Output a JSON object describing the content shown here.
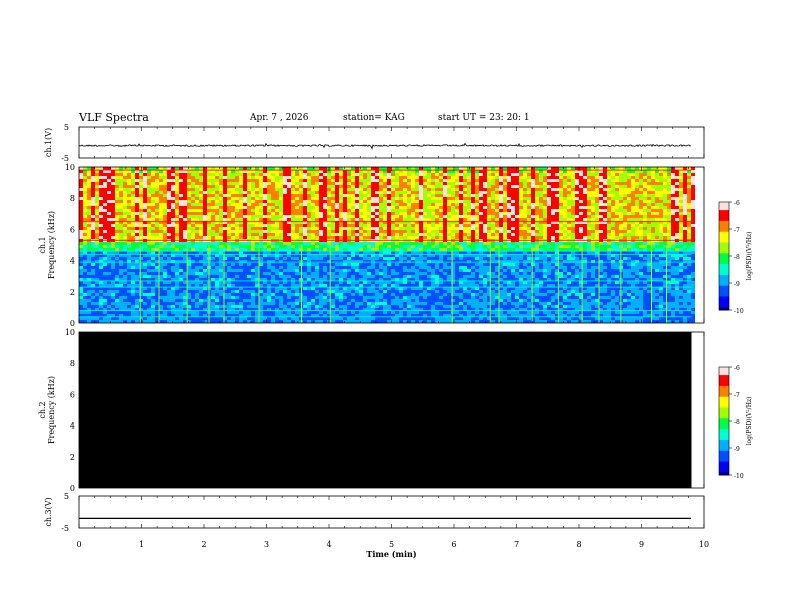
{
  "header": {
    "title": "VLF Spectra",
    "date": "Apr. 7 , 2026",
    "station": "station= KAG",
    "start": "start UT = 23: 20: 1"
  },
  "colors": {
    "spectrogram": [
      "#000080",
      "#0000ff",
      "#0050ff",
      "#00b0ff",
      "#00ffd0",
      "#00ff40",
      "#a0ff00",
      "#ffff00",
      "#ff8000",
      "#ff0000",
      "#ffe0e0"
    ],
    "ch2_fill": "#000000"
  },
  "chart_data": [
    {
      "type": "line",
      "name": "ch1-waveform",
      "ylabel": "ch.1(V)",
      "ylim": [
        -5,
        5
      ],
      "yticks": [
        5,
        -5
      ],
      "xlim": [
        0,
        10
      ],
      "baseline": -1,
      "end_time_min": 9.8
    },
    {
      "type": "heatmap",
      "name": "ch1-spectrogram",
      "ylabel_channel": "ch.1",
      "ylabel": "Frequency (kHz)",
      "ylim": [
        0,
        10
      ],
      "yticks": [
        0,
        2,
        4,
        6,
        8,
        10
      ],
      "xlim": [
        0,
        10
      ],
      "end_time_min": 9.8,
      "colorbar": {
        "label": "log(PSD)(V²/Hz)",
        "min": -10,
        "max": -6,
        "ticks": [
          -6,
          -7,
          -8,
          -9,
          -10
        ]
      },
      "noise_band_khz": [
        5,
        10
      ],
      "low_band_khz": [
        0,
        5
      ],
      "strong_lines_khz": [
        0.4,
        0.8,
        2.3,
        2.7,
        3.9,
        4.4,
        4.6,
        5.3,
        6.5,
        9.8
      ],
      "vertical_events_min": [
        0.98,
        1.28,
        1.73,
        2.08,
        2.32,
        2.88,
        3.56,
        4.02,
        5.97,
        6.58,
        6.72,
        7.25,
        7.67,
        8.05,
        8.32,
        8.67,
        9.16,
        9.4
      ]
    },
    {
      "type": "heatmap",
      "name": "ch2-spectrogram",
      "ylabel_channel": "ch.2",
      "ylabel": "Frequency (kHz)",
      "ylim": [
        0,
        10
      ],
      "yticks": [
        0,
        2,
        4,
        6,
        8,
        10
      ],
      "xlim": [
        0,
        10
      ],
      "end_time_min": 9.8,
      "colorbar": {
        "label": "log(PSD)(V²/Hz)",
        "min": -10,
        "max": -6,
        "ticks": [
          -6,
          -7,
          -8,
          -9,
          -10
        ]
      }
    },
    {
      "type": "line",
      "name": "ch3-waveform",
      "ylabel": "ch.3(V)",
      "ylim": [
        -5,
        5
      ],
      "yticks": [
        5,
        -5
      ],
      "xlim": [
        0,
        10
      ],
      "baseline": -2,
      "end_time_min": 9.8,
      "xlabel": "Time (min)",
      "xticks": [
        0,
        1,
        2,
        3,
        4,
        5,
        6,
        7,
        8,
        9,
        10
      ]
    }
  ]
}
